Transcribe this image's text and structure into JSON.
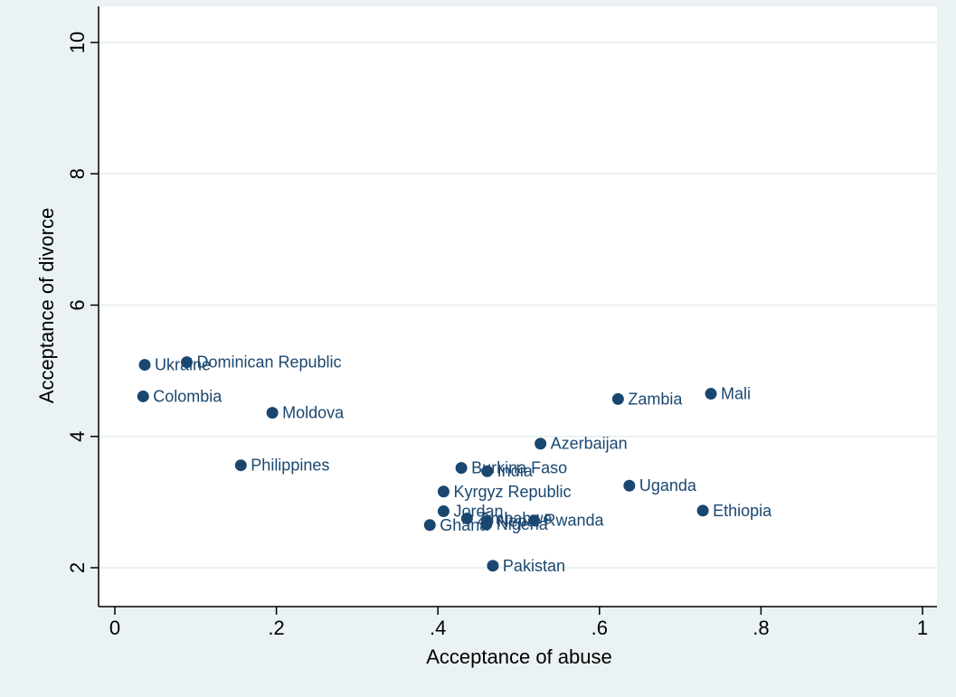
{
  "chart_data": {
    "type": "scatter",
    "title": "",
    "xlabel": "Acceptance of abuse",
    "ylabel": "Acceptance of divorce",
    "xlim": [
      0,
      1
    ],
    "ylim": [
      2,
      10
    ],
    "x_ticks": [
      {
        "value": 0,
        "label": "0"
      },
      {
        "value": 0.2,
        "label": ".2"
      },
      {
        "value": 0.4,
        "label": ".4"
      },
      {
        "value": 0.6,
        "label": ".6"
      },
      {
        "value": 0.8,
        "label": ".8"
      },
      {
        "value": 1,
        "label": "1"
      }
    ],
    "y_ticks": [
      {
        "value": 2,
        "label": "2"
      },
      {
        "value": 4,
        "label": "4"
      },
      {
        "value": 6,
        "label": "6"
      },
      {
        "value": 8,
        "label": "8"
      },
      {
        "value": 10,
        "label": "10"
      }
    ],
    "grid": "horizontal",
    "colors": {
      "outer_background": "#eaf2f3",
      "plot_background": "#ffffff",
      "marker": "#1a476f",
      "label": "#1a476f",
      "grid": "#eaf2f3",
      "axis": "#000000"
    },
    "points": [
      {
        "label": "Ukraine",
        "x": 0.037,
        "y": 5.09
      },
      {
        "label": "Dominican Republic",
        "x": 0.089,
        "y": 5.13
      },
      {
        "label": "Colombia",
        "x": 0.035,
        "y": 4.61
      },
      {
        "label": "Moldova",
        "x": 0.195,
        "y": 4.36
      },
      {
        "label": "Philippines",
        "x": 0.156,
        "y": 3.56
      },
      {
        "label": "Zambia",
        "x": 0.623,
        "y": 4.57
      },
      {
        "label": "Mali",
        "x": 0.738,
        "y": 4.65
      },
      {
        "label": "Azerbaijan",
        "x": 0.527,
        "y": 3.89
      },
      {
        "label": "Burkina Faso",
        "x": 0.429,
        "y": 3.52
      },
      {
        "label": "India",
        "x": 0.461,
        "y": 3.47
      },
      {
        "label": "Uganda",
        "x": 0.637,
        "y": 3.25
      },
      {
        "label": "Kyrgyz Republic",
        "x": 0.407,
        "y": 3.16
      },
      {
        "label": "Ethiopia",
        "x": 0.728,
        "y": 2.87
      },
      {
        "label": "Jordan",
        "x": 0.407,
        "y": 2.86
      },
      {
        "label": "Zimbabwe",
        "x": 0.436,
        "y": 2.75
      },
      {
        "label": "Nepal",
        "x": 0.461,
        "y": 2.71
      },
      {
        "label": "Rwanda",
        "x": 0.519,
        "y": 2.72
      },
      {
        "label": "Nigeria",
        "x": 0.46,
        "y": 2.66
      },
      {
        "label": "Ghana",
        "x": 0.39,
        "y": 2.65
      },
      {
        "label": "Pakistan",
        "x": 0.468,
        "y": 2.03
      }
    ]
  }
}
